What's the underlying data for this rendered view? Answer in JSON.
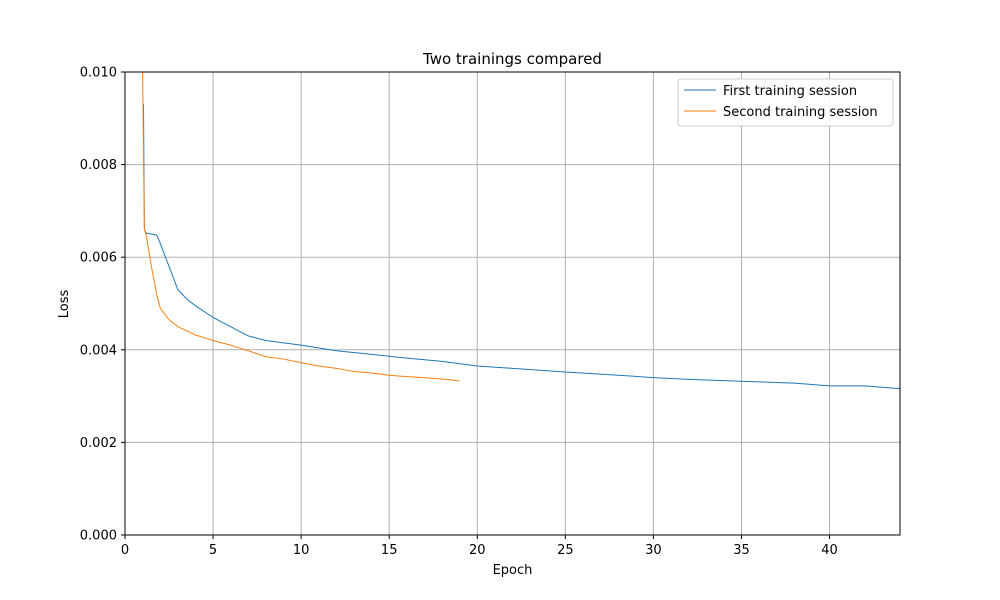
{
  "chart_data": {
    "type": "line",
    "title": "Two trainings compared",
    "xlabel": "Epoch",
    "ylabel": "Loss",
    "xlim": [
      0,
      44
    ],
    "ylim": [
      0,
      0.01
    ],
    "x_ticks": [
      0,
      5,
      10,
      15,
      20,
      25,
      30,
      35,
      40
    ],
    "x_tick_labels": [
      "0",
      "5",
      "10",
      "15",
      "20",
      "25",
      "30",
      "35",
      "40"
    ],
    "y_ticks": [
      0,
      0.002,
      0.004,
      0.006,
      0.008,
      0.01
    ],
    "y_tick_labels": [
      "0.000",
      "0.002",
      "0.004",
      "0.006",
      "0.008",
      "0.010"
    ],
    "grid": true,
    "legend_position": "top-right",
    "series": [
      {
        "name": "First training session",
        "color": "#1f77b4",
        "points": [
          [
            1.05,
            0.0093
          ],
          [
            1.1,
            0.0066
          ],
          [
            1.2,
            0.00652
          ],
          [
            1.5,
            0.0065
          ],
          [
            1.8,
            0.00648
          ],
          [
            2.0,
            0.0063
          ],
          [
            2.5,
            0.0058
          ],
          [
            3.0,
            0.0053
          ],
          [
            3.5,
            0.0051
          ],
          [
            4.0,
            0.00495
          ],
          [
            5.0,
            0.0047
          ],
          [
            6.0,
            0.0045
          ],
          [
            7.0,
            0.0043
          ],
          [
            8.0,
            0.0042
          ],
          [
            9.0,
            0.00415
          ],
          [
            10.0,
            0.0041
          ],
          [
            12.0,
            0.00398
          ],
          [
            14.0,
            0.0039
          ],
          [
            16.0,
            0.00382
          ],
          [
            18.0,
            0.00375
          ],
          [
            20.0,
            0.00365
          ],
          [
            22.0,
            0.0036
          ],
          [
            25.0,
            0.00352
          ],
          [
            28.0,
            0.00345
          ],
          [
            30.0,
            0.0034
          ],
          [
            32.0,
            0.00336
          ],
          [
            35.0,
            0.00332
          ],
          [
            38.0,
            0.00328
          ],
          [
            40.0,
            0.00322
          ],
          [
            42.0,
            0.00322
          ],
          [
            44.0,
            0.00316
          ]
        ]
      },
      {
        "name": "Second training session",
        "color": "#ff7f0e",
        "points": [
          [
            1.0,
            0.01
          ],
          [
            1.1,
            0.0066
          ],
          [
            1.2,
            0.00648
          ],
          [
            1.5,
            0.0058
          ],
          [
            1.8,
            0.0052
          ],
          [
            2.0,
            0.0049
          ],
          [
            2.5,
            0.00465
          ],
          [
            3.0,
            0.0045
          ],
          [
            4.0,
            0.00432
          ],
          [
            5.0,
            0.0042
          ],
          [
            6.0,
            0.0041
          ],
          [
            7.0,
            0.00398
          ],
          [
            8.0,
            0.00385
          ],
          [
            9.0,
            0.0038
          ],
          [
            10.0,
            0.00372
          ],
          [
            11.0,
            0.00365
          ],
          [
            12.0,
            0.0036
          ],
          [
            13.0,
            0.00353
          ],
          [
            14.0,
            0.0035
          ],
          [
            15.0,
            0.00345
          ],
          [
            16.0,
            0.00342
          ],
          [
            17.0,
            0.0034
          ],
          [
            18.0,
            0.00337
          ],
          [
            19.0,
            0.00333
          ]
        ]
      }
    ]
  }
}
